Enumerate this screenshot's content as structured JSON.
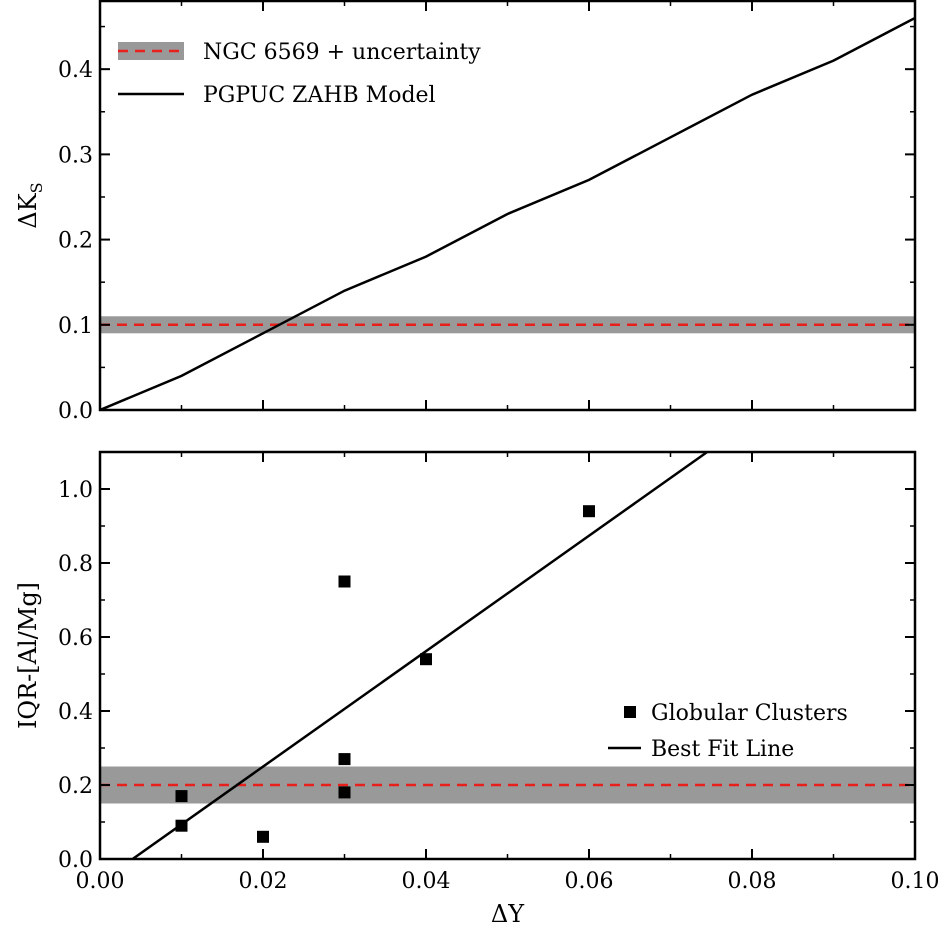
{
  "chart_data": [
    {
      "type": "line",
      "ylabel": "ΔK",
      "ylabel_subscript": "S",
      "xlim": [
        0.0,
        0.1
      ],
      "ylim": [
        0.0,
        0.48
      ],
      "xticks": [
        0.0,
        0.02,
        0.04,
        0.06,
        0.08,
        0.1
      ],
      "yticks": [
        0.0,
        0.1,
        0.2,
        0.3,
        0.4
      ],
      "ytick_labels": [
        "0.0",
        "0.1",
        "0.2",
        "0.3",
        "0.4"
      ],
      "band": {
        "center": 0.1,
        "low": 0.09,
        "high": 0.11
      },
      "series": [
        {
          "name": "PGPUC ZAHB Model",
          "x": [
            0.0,
            0.01,
            0.02,
            0.03,
            0.04,
            0.05,
            0.06,
            0.07,
            0.08,
            0.09,
            0.1
          ],
          "y": [
            0.0,
            0.04,
            0.09,
            0.14,
            0.18,
            0.23,
            0.27,
            0.32,
            0.37,
            0.41,
            0.46
          ]
        }
      ],
      "legend": {
        "position": "top-left",
        "entries": [
          "NGC 6569 + uncertainty",
          "PGPUC ZAHB Model"
        ]
      },
      "colors": {
        "band": "#999999",
        "dashed": "#e8201c",
        "line": "#000000"
      }
    },
    {
      "type": "scatter",
      "xlabel": "ΔY",
      "ylabel": "IQR-[Al/Mg]",
      "xlim": [
        0.0,
        0.1
      ],
      "ylim": [
        0.0,
        1.1
      ],
      "xticks": [
        0.0,
        0.02,
        0.04,
        0.06,
        0.08,
        0.1
      ],
      "xtick_labels": [
        "0.00",
        "0.02",
        "0.04",
        "0.06",
        "0.08",
        "0.10"
      ],
      "yticks": [
        0.0,
        0.2,
        0.4,
        0.6,
        0.8,
        1.0
      ],
      "ytick_labels": [
        "0.0",
        "0.2",
        "0.4",
        "0.6",
        "0.8",
        "1.0"
      ],
      "band": {
        "center": 0.2,
        "low": 0.15,
        "high": 0.25
      },
      "series": [
        {
          "name": "Globular Clusters",
          "x": [
            0.01,
            0.01,
            0.02,
            0.03,
            0.03,
            0.03,
            0.04,
            0.06
          ],
          "y": [
            0.17,
            0.09,
            0.06,
            0.75,
            0.27,
            0.18,
            0.54,
            0.94
          ]
        },
        {
          "name": "Best Fit Line",
          "x": [
            0.004,
            0.0745
          ],
          "y": [
            0.0,
            1.1
          ]
        }
      ],
      "legend": {
        "position": "center-right",
        "entries": [
          "Globular Clusters",
          "Best Fit Line"
        ]
      },
      "colors": {
        "band": "#999999",
        "dashed": "#e8201c",
        "line": "#000000",
        "marker": "#000000"
      }
    }
  ]
}
